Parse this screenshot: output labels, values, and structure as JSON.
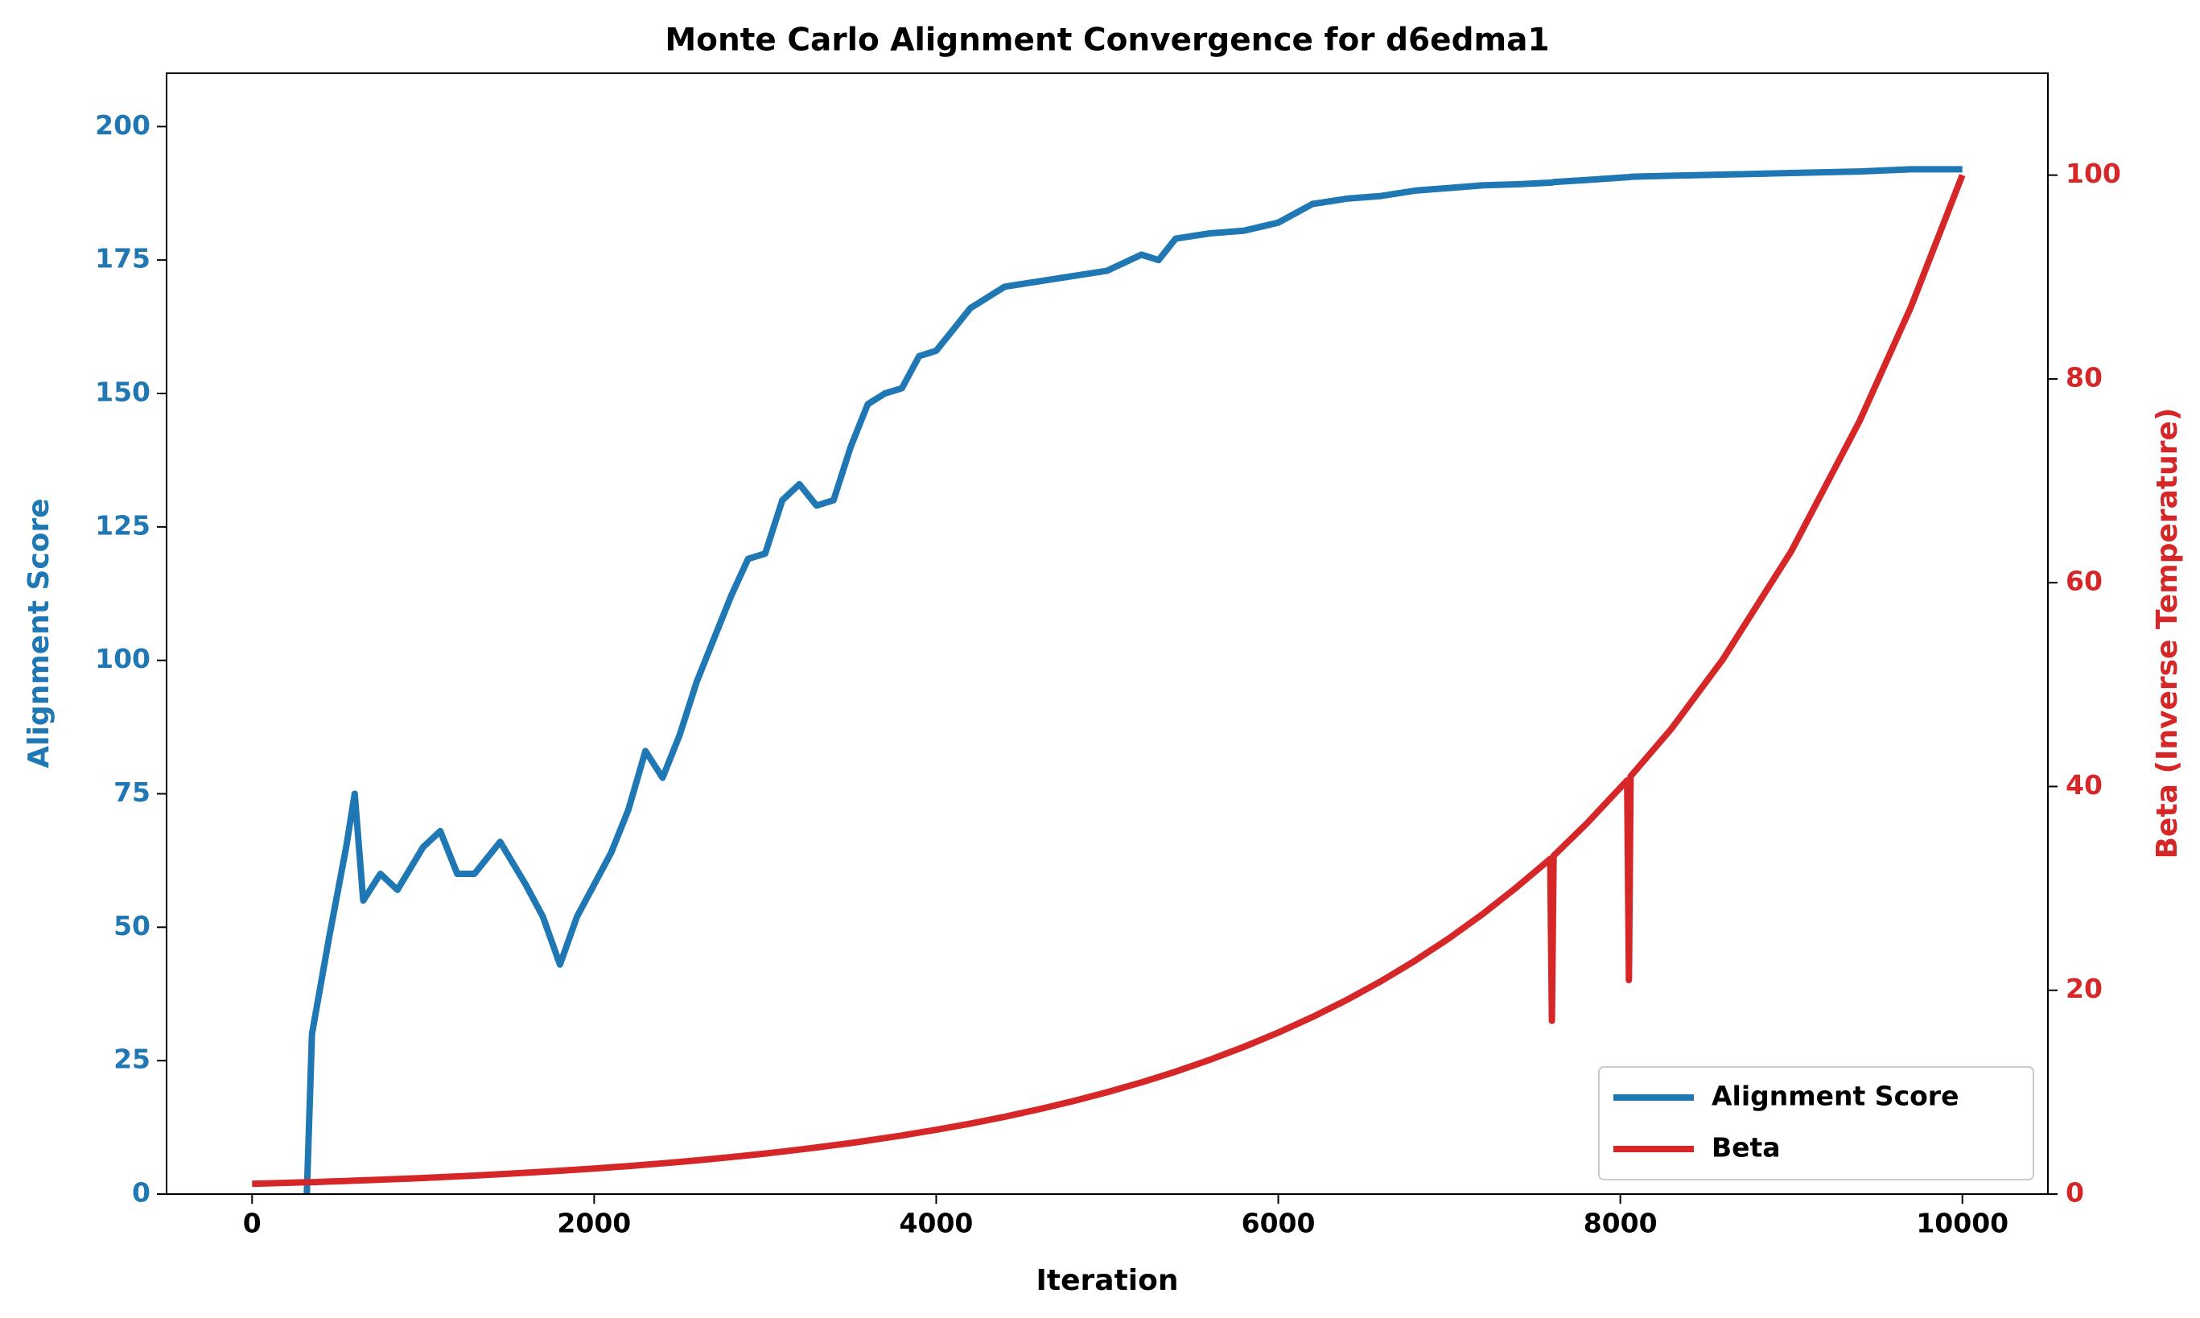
{
  "chart_data": {
    "type": "line",
    "title": "Monte Carlo Alignment Convergence for d6edma1",
    "x_label": "Iteration",
    "y_label": "Alignment Score",
    "y2_label": "Beta (Inverse Temperature)",
    "x": [
      0,
      320,
      350,
      450,
      550,
      600,
      650,
      750,
      850,
      1000,
      1100,
      1200,
      1300,
      1450,
      1600,
      1700,
      1800,
      1900,
      2000,
      2100,
      2200,
      2300,
      2400,
      2500,
      2600,
      2700,
      2800,
      2900,
      3000,
      3100,
      3200,
      3300,
      3400,
      3500,
      3600,
      3700,
      3800,
      3900,
      4000,
      4200,
      4400,
      4600,
      4800,
      5000,
      5200,
      5300,
      5400,
      5600,
      5800,
      6000,
      6200,
      6400,
      6600,
      6800,
      7000,
      7200,
      7400,
      7590,
      7600,
      7610,
      7800,
      8040,
      8050,
      8060,
      8300,
      8600,
      9000,
      9400,
      9700,
      10000
    ],
    "series": [
      {
        "name": "Alignment Score",
        "color": "#1f77b4",
        "axis": "y",
        "values": [
          null,
          0,
          30,
          48,
          65,
          75,
          55,
          60,
          57,
          65,
          68,
          60,
          60,
          66,
          58,
          52,
          43,
          52,
          58,
          64,
          72,
          83,
          78,
          86,
          96,
          104,
          112,
          119,
          120,
          130,
          133,
          129,
          130,
          140,
          148,
          150,
          151,
          157,
          158,
          166,
          170,
          171,
          172,
          173,
          176,
          175,
          179,
          180,
          180.5,
          182,
          185.5,
          186.5,
          187,
          188,
          188.5,
          189,
          189.2,
          189.5,
          189.5,
          189.6,
          190,
          190.5,
          190.5,
          190.6,
          190.8,
          191,
          191.3,
          191.6,
          192,
          192
        ]
      },
      {
        "name": "Beta",
        "color": "#d62728",
        "axis": "y2",
        "values": [
          1,
          1.16,
          1.17,
          1.23,
          1.29,
          1.32,
          1.35,
          1.41,
          1.48,
          1.58,
          1.66,
          1.74,
          1.82,
          1.95,
          2.09,
          2.19,
          2.29,
          2.4,
          2.51,
          2.63,
          2.75,
          2.88,
          3.02,
          3.16,
          3.31,
          3.47,
          3.63,
          3.8,
          3.98,
          4.17,
          4.37,
          4.57,
          4.79,
          5.01,
          5.25,
          5.5,
          5.75,
          6.03,
          6.31,
          6.92,
          7.59,
          8.32,
          9.12,
          10,
          10.96,
          11.48,
          12.02,
          13.18,
          14.45,
          15.85,
          17.38,
          19.05,
          20.89,
          22.91,
          25.12,
          27.54,
          30.2,
          32.9,
          17,
          33.2,
          36.3,
          40.6,
          21,
          41,
          45.7,
          52.5,
          63.1,
          75.9,
          87.1,
          100
        ]
      }
    ],
    "xlim": [
      -500,
      10500
    ],
    "xticks": [
      0,
      2000,
      4000,
      6000,
      8000,
      10000
    ],
    "ylim": [
      0,
      210
    ],
    "yticks": [
      0,
      25,
      50,
      75,
      100,
      125,
      150,
      175,
      200
    ],
    "y2lim": [
      0,
      110
    ],
    "y2ticks": [
      0,
      20,
      40,
      60,
      80,
      100
    ],
    "legend": "lower right"
  }
}
